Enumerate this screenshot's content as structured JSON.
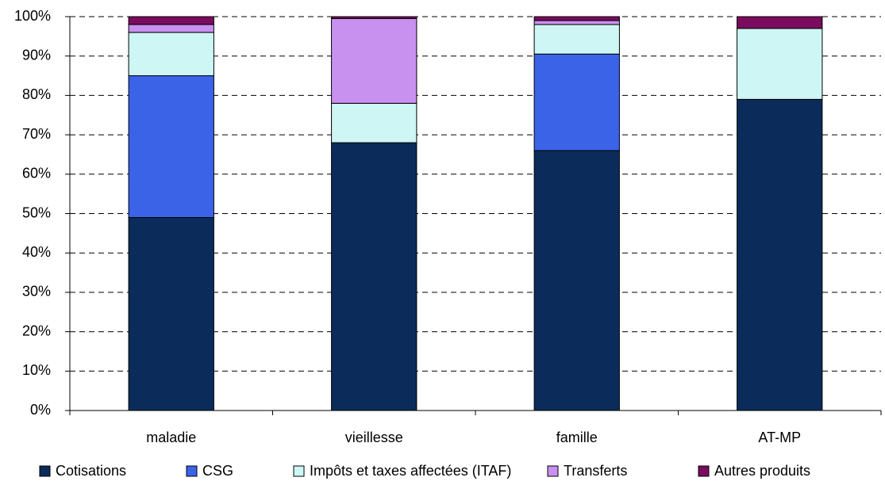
{
  "chart_data": {
    "type": "stacked-bar",
    "categories": [
      "maladie",
      "vieillesse",
      "famille",
      "AT-MP"
    ],
    "series": [
      {
        "name": "Cotisations",
        "color": "#0b2c5a",
        "values": [
          49,
          68,
          66,
          79
        ]
      },
      {
        "name": "CSG",
        "color": "#3b63e8",
        "values": [
          36,
          0,
          24.5,
          0
        ]
      },
      {
        "name": "Impôts et taxes affectées (ITAF)",
        "color": "#cdf6f4",
        "values": [
          11,
          10,
          7.5,
          18
        ]
      },
      {
        "name": "Transferts",
        "color": "#c891f0",
        "values": [
          2,
          21.5,
          1,
          0
        ]
      },
      {
        "name": "Autres produits",
        "color": "#7b0b5e",
        "values": [
          2,
          0.5,
          1,
          3
        ]
      }
    ],
    "ylim": [
      0,
      100
    ],
    "yticks": [
      {
        "value": 0,
        "label": "0%"
      },
      {
        "value": 10,
        "label": "10%"
      },
      {
        "value": 20,
        "label": "20%"
      },
      {
        "value": 30,
        "label": "30%"
      },
      {
        "value": 40,
        "label": "40%"
      },
      {
        "value": 50,
        "label": "50%"
      },
      {
        "value": 60,
        "label": "60%"
      },
      {
        "value": 70,
        "label": "70%"
      },
      {
        "value": 80,
        "label": "80%"
      },
      {
        "value": 90,
        "label": "90%"
      },
      {
        "value": 100,
        "label": "100%"
      }
    ],
    "grid": true,
    "legend": "bottom"
  }
}
